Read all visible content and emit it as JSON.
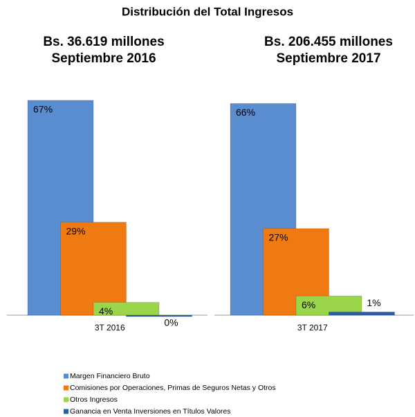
{
  "chart_data": {
    "type": "bar",
    "title": "Distribución del Total Ingresos",
    "group_titles": [
      [
        "Bs. 36.619 millones",
        "Septiembre 2016"
      ],
      [
        "Bs. 206.455 millones",
        "Septiembre 2017"
      ]
    ],
    "categories": [
      "3T 2016",
      "3T 2017"
    ],
    "series": [
      {
        "name": "Margen Financiero Bruto",
        "color": "#5a8dd0",
        "values": [
          67,
          66
        ],
        "value_labels": [
          "67%",
          "66%"
        ]
      },
      {
        "name": "Comisiones por Operaciones, Primas de Seguros Netas y Otros",
        "color": "#f07a12",
        "values": [
          29,
          27
        ],
        "value_labels": [
          "29%",
          "27%"
        ]
      },
      {
        "name": "Otros Ingresos",
        "color": "#9bd54a",
        "values": [
          4,
          6
        ],
        "value_labels": [
          "4%",
          "6%"
        ]
      },
      {
        "name": "Ganancia en Venta Inversiones en Títulos Valores",
        "color": "#2d5ea8",
        "values": [
          0,
          1
        ],
        "value_labels": [
          "0%",
          "1%"
        ]
      }
    ],
    "legend": "bottom"
  }
}
